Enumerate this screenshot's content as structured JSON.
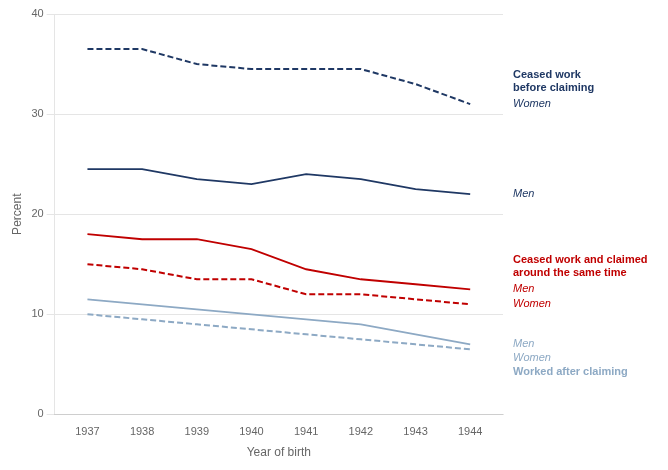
{
  "chart_data": {
    "type": "line",
    "xlabel": "Year of birth",
    "ylabel": "Percent",
    "x": [
      1937,
      1938,
      1939,
      1940,
      1941,
      1942,
      1943,
      1944
    ],
    "series": [
      {
        "name": "Women",
        "color": "#1f3864",
        "line_style": "dashed",
        "values": [
          36.5,
          36.5,
          35.0,
          34.5,
          34.5,
          34.5,
          33.0,
          31.0
        ]
      },
      {
        "name": "Men",
        "color": "#1f3864",
        "line_style": "solid",
        "values": [
          24.5,
          24.5,
          23.5,
          23.0,
          24.0,
          23.5,
          22.5,
          22.0
        ]
      },
      {
        "name": "Men",
        "color": "#c00000",
        "line_style": "solid",
        "values": [
          18.0,
          17.5,
          17.5,
          16.5,
          14.5,
          13.5,
          13.0,
          12.5
        ]
      },
      {
        "name": "Women",
        "color": "#c00000",
        "line_style": "dashed",
        "values": [
          15.0,
          14.5,
          13.5,
          13.5,
          12.0,
          12.0,
          11.5,
          11.0
        ]
      },
      {
        "name": "Men",
        "color": "#8da9c4",
        "line_style": "solid",
        "values": [
          11.5,
          11.0,
          10.5,
          10.0,
          9.5,
          9.0,
          8.0,
          7.0
        ]
      },
      {
        "name": "Women",
        "color": "#8da9c4",
        "line_style": "dashed",
        "values": [
          10.0,
          9.5,
          9.0,
          8.5,
          8.0,
          7.5,
          7.0,
          6.5
        ]
      }
    ],
    "xlim": [
      1936.4,
      1944.6
    ],
    "xticks": [
      1937,
      1938,
      1939,
      1940,
      1941,
      1942,
      1943,
      1944
    ],
    "ylim": [
      0,
      40
    ],
    "yticks": [
      0,
      10,
      20,
      30,
      40
    ],
    "grid": true,
    "annotations": [
      {
        "text": "Ceased work\nbefore claiming",
        "color": "#1f3864"
      },
      {
        "text": "Ceased work and claimed\naround the same time",
        "color": "#c00000"
      },
      {
        "text": "Worked after claiming",
        "color": "#8da9c4"
      }
    ]
  }
}
